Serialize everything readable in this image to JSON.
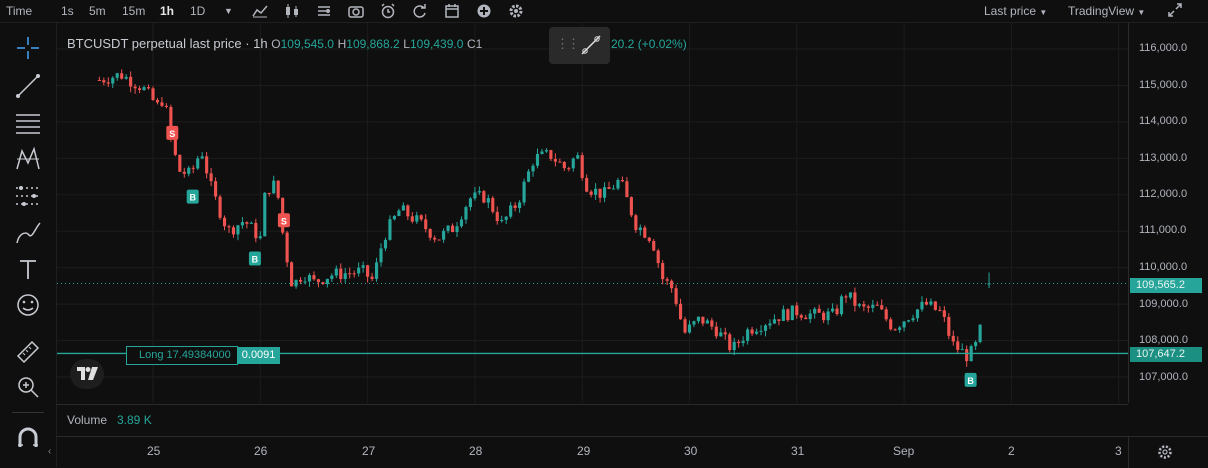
{
  "toolbar": {
    "time_label": "Time",
    "intervals": [
      "1s",
      "5m",
      "15m",
      "1h",
      "1D"
    ],
    "active_interval": "1h",
    "right_price": "Last price",
    "right_source": "TradingView"
  },
  "legend": {
    "title": "BTCUSDT perpetual last price · 1h",
    "o_key": "O",
    "o_val": "109,545.0",
    "h_key": "H",
    "h_val": "109,868.2",
    "l_key": "L",
    "l_val": "109,439.0",
    "c_key": "C1",
    "change": "20.2 (+0.02%)"
  },
  "price_axis": {
    "labels": [
      "116,000.0",
      "115,000.0",
      "114,000.0",
      "113,000.0",
      "112,000.0",
      "111,000.0",
      "110,000.0",
      "109,000.0",
      "108,000.0",
      "107,000.0"
    ],
    "last_price_tag": "109,565.2",
    "position_tag": "107,647.2"
  },
  "position": {
    "label": "Long 17.49384000",
    "pnl": "0.0091"
  },
  "markers": {
    "sell": "S",
    "buy": "B"
  },
  "volume": {
    "label": "Volume",
    "value": "3.89 K"
  },
  "time_axis": {
    "labels": [
      "25",
      "26",
      "27",
      "28",
      "29",
      "30",
      "31",
      "Sep",
      "2",
      "3"
    ]
  },
  "colors": {
    "up": "#26a69a",
    "down": "#ef5350",
    "background": "#0f0f0f"
  },
  "chart_data": {
    "type": "candlestick",
    "series_name": "BTCUSDT perpetual last price",
    "interval": "1h",
    "ylim": [
      106500,
      116500
    ],
    "anchors": [
      [
        24.5,
        115150
      ],
      [
        24.7,
        115300
      ],
      [
        24.9,
        114950
      ],
      [
        25.05,
        114400
      ],
      [
        25.1,
        114700
      ],
      [
        25.18,
        113300
      ],
      [
        25.25,
        112650
      ],
      [
        25.35,
        112550
      ],
      [
        25.45,
        113250
      ],
      [
        25.55,
        112100
      ],
      [
        25.7,
        111000
      ],
      [
        25.85,
        111300
      ],
      [
        26.0,
        110800
      ],
      [
        26.05,
        112150
      ],
      [
        26.15,
        112300
      ],
      [
        26.22,
        110700
      ],
      [
        26.3,
        109500
      ],
      [
        26.4,
        109850
      ],
      [
        26.5,
        109600
      ],
      [
        26.65,
        109800
      ],
      [
        26.8,
        109850
      ],
      [
        26.95,
        109900
      ],
      [
        27.05,
        109650
      ],
      [
        27.15,
        110850
      ],
      [
        27.3,
        111600
      ],
      [
        27.5,
        111200
      ],
      [
        27.65,
        110800
      ],
      [
        27.8,
        111100
      ],
      [
        27.95,
        111900
      ],
      [
        28.1,
        111950
      ],
      [
        28.25,
        111200
      ],
      [
        28.4,
        111800
      ],
      [
        28.55,
        113000
      ],
      [
        28.7,
        113100
      ],
      [
        28.85,
        112700
      ],
      [
        28.95,
        113100
      ],
      [
        29.05,
        112200
      ],
      [
        29.2,
        112000
      ],
      [
        29.35,
        112400
      ],
      [
        29.5,
        111200
      ],
      [
        29.65,
        110800
      ],
      [
        29.75,
        109700
      ],
      [
        29.85,
        109400
      ],
      [
        29.95,
        108200
      ],
      [
        30.1,
        108600
      ],
      [
        30.25,
        108300
      ],
      [
        30.4,
        107750
      ],
      [
        30.55,
        108300
      ],
      [
        30.7,
        108500
      ],
      [
        30.85,
        108700
      ],
      [
        31.0,
        108800
      ],
      [
        31.15,
        108700
      ],
      [
        31.35,
        108700
      ],
      [
        31.45,
        109300
      ],
      [
        31.6,
        108850
      ],
      [
        31.75,
        108900
      ],
      [
        31.9,
        108350
      ],
      [
        32.05,
        108700
      ],
      [
        32.2,
        109000
      ],
      [
        32.35,
        108750
      ],
      [
        32.45,
        107900
      ],
      [
        32.6,
        107550
      ],
      [
        32.7,
        108000
      ],
      [
        32.75,
        109650
      ]
    ],
    "last": {
      "open": 109545.0,
      "high": 109868.2,
      "low": 109439.0,
      "close": 109565.2
    },
    "sell_markers_day": [
      25.18,
      26.22
    ],
    "buy_markers_day": [
      25.37,
      25.95,
      32.62
    ],
    "position_price": 107647.2
  }
}
